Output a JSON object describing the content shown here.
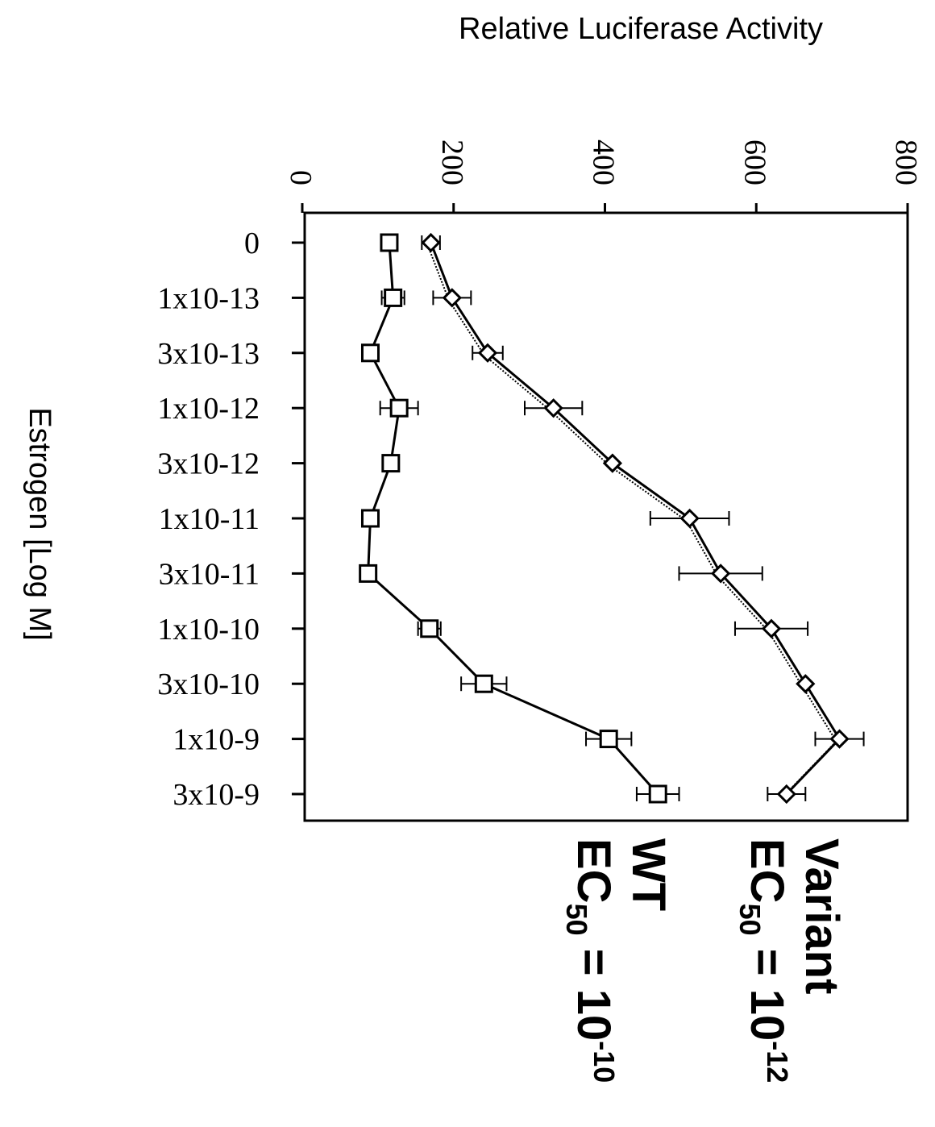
{
  "chart_data": {
    "type": "line",
    "xlabel": "Estrogen [Log M]",
    "ylabel": "Relative Luciferase Activity",
    "ylim": [
      0,
      800
    ],
    "yticks": [
      "0",
      "200",
      "400",
      "600",
      "800"
    ],
    "categories": [
      "0",
      "1x10-13",
      "3x10-13",
      "1x10-12",
      "3x10-12",
      "1x10-11",
      "3x10-11",
      "1x10-10",
      "3x10-10",
      "1x10-9",
      "3x10-9"
    ],
    "grid": false,
    "orientation": "rotated 90 degrees clockwise",
    "series": [
      {
        "name": "Variant",
        "marker": "diamond",
        "values": [
          170,
          198,
          245,
          332,
          410,
          512,
          553,
          620,
          665,
          710,
          640
        ],
        "errors": [
          12,
          25,
          20,
          38,
          0,
          52,
          55,
          48,
          0,
          32,
          25
        ]
      },
      {
        "name": "WT",
        "marker": "square",
        "values": [
          115,
          120,
          90,
          128,
          117,
          90,
          87,
          168,
          240,
          405,
          470
        ],
        "errors": [
          0,
          15,
          0,
          25,
          0,
          0,
          0,
          15,
          30,
          30,
          28
        ]
      }
    ],
    "annotations": [
      {
        "series": "Variant",
        "label": "Variant",
        "ec_prefix": "EC",
        "ec_sub": "50",
        "ec_eq": " = 10",
        "ec_exp": "-12"
      },
      {
        "series": "WT",
        "label": "WT",
        "ec_prefix": "EC",
        "ec_sub": "50",
        "ec_eq": " = 10",
        "ec_exp": "-10"
      }
    ]
  }
}
